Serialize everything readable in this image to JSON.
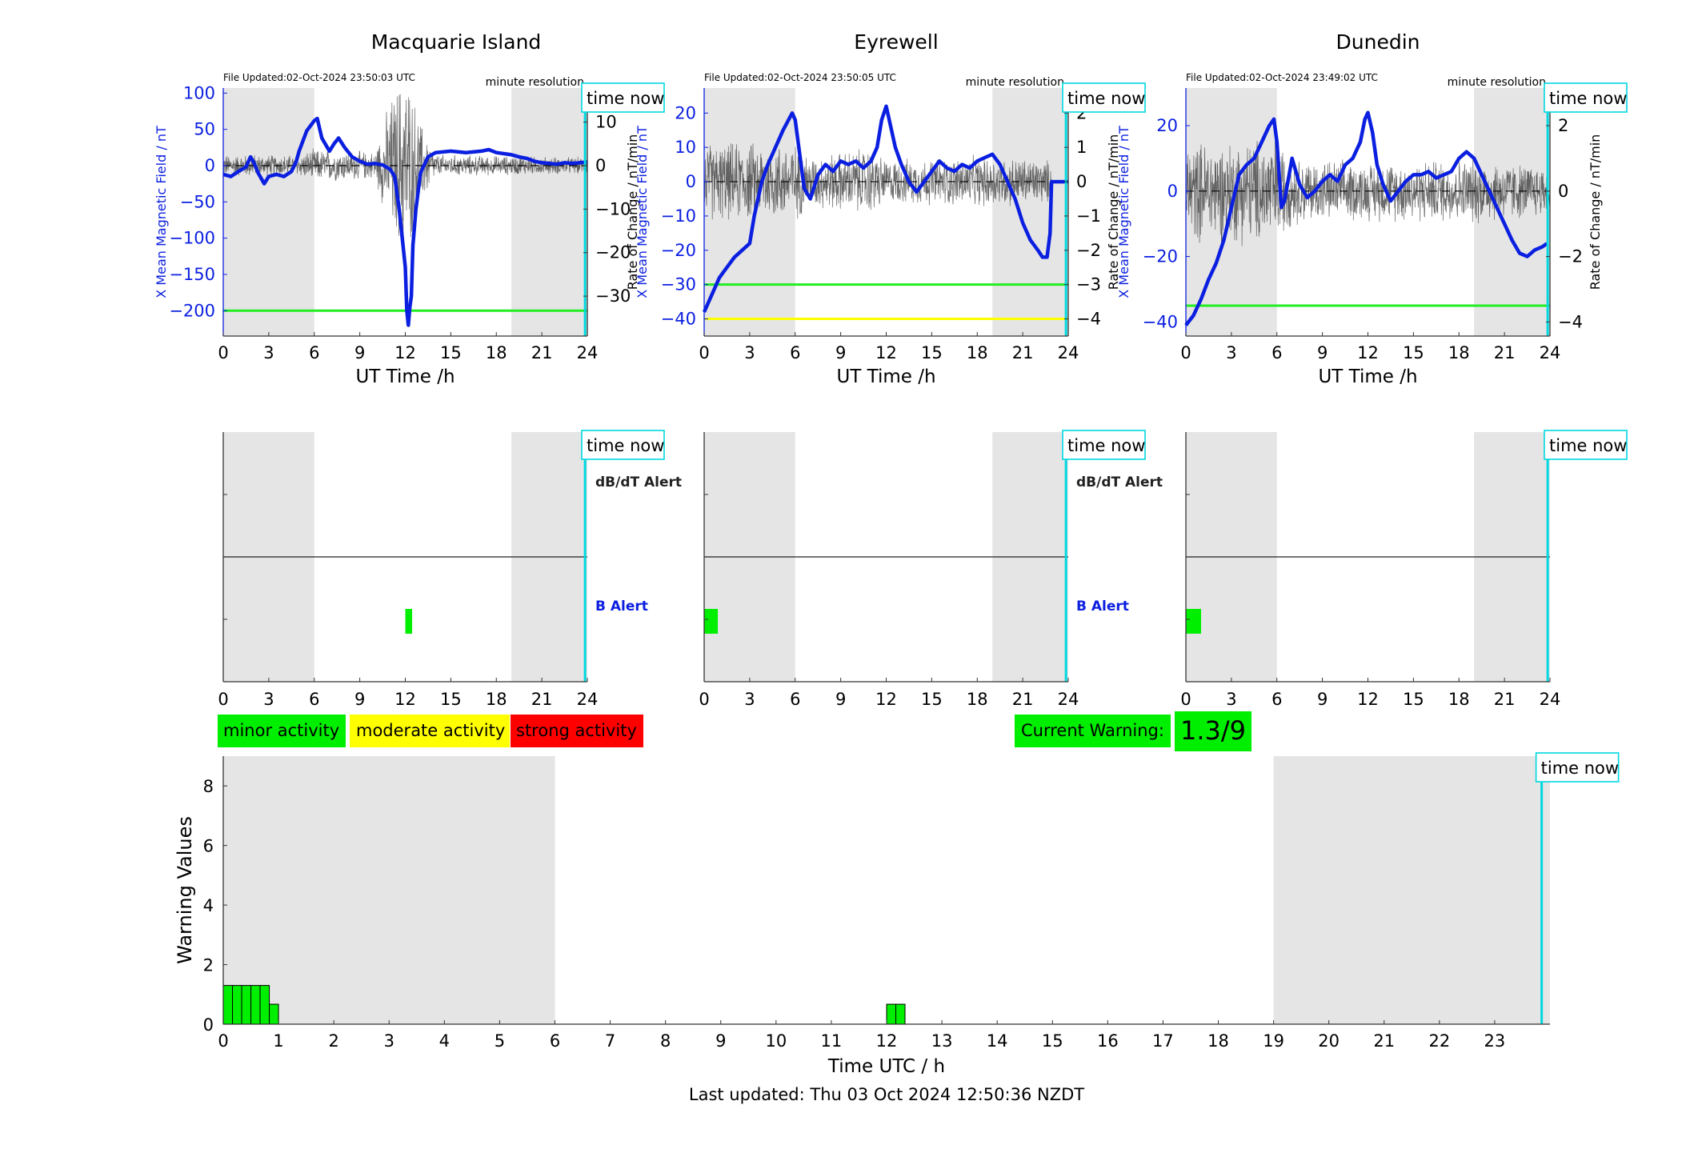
{
  "colors": {
    "b_field": "#0b1fe0",
    "rate": "#555555",
    "threshold_green": "#22ee22",
    "threshold_yellow": "#ffff00",
    "time_now": "#00d8e0",
    "night_shade": "#e5e5e5",
    "minor": "#00ee00",
    "moderate": "#ffff00",
    "strong": "#ff0000"
  },
  "common": {
    "x_axis_label": "UT Time /h",
    "resolution_label": "minute resolution",
    "time_now_label": "time now",
    "left_axis_label": "X Mean Magnetic Field / nT",
    "right_axis_label": "Rate of Change / nT/min",
    "dbdt_alert_label": "dB/dT Alert",
    "b_alert_label": "B Alert"
  },
  "legend": {
    "minor": "minor activity",
    "moderate": "moderate activity",
    "strong": "strong activity"
  },
  "current_warning": {
    "label": "Current Warning:",
    "value": "1.3/9"
  },
  "footer": {
    "last_updated": "Last updated: Thu 03 Oct 2024 12:50:36 NZDT"
  },
  "chart_data": [
    {
      "type": "line",
      "title": "Macquarie Island",
      "file_updated": "File Updated:02-Oct-2024 23:50:03 UTC",
      "xlabel": "UT Time /h",
      "ylabel": "X Mean Magnetic Field / nT",
      "y2label": "Rate of Change / nT/min",
      "xlim": [
        0,
        24
      ],
      "xticks": [
        0,
        3,
        6,
        9,
        12,
        15,
        18,
        21,
        24
      ],
      "ylim": [
        -235,
        107
      ],
      "yticks": [
        100,
        50,
        0,
        -50,
        -100,
        -150,
        -200
      ],
      "y2lim": [
        -39.17,
        17.83
      ],
      "y2ticks": [
        10,
        0,
        -10,
        -20,
        -30
      ],
      "night_shade": [
        [
          0,
          6
        ],
        [
          19,
          24
        ]
      ],
      "thresholds": [
        {
          "y": -200,
          "color": "#22ee22"
        }
      ],
      "time_now": 23.85,
      "b_series": [
        [
          0,
          -12
        ],
        [
          0.5,
          -15
        ],
        [
          1,
          -8
        ],
        [
          1.5,
          -2
        ],
        [
          1.8,
          12
        ],
        [
          2,
          5
        ],
        [
          2.3,
          -10
        ],
        [
          2.7,
          -25
        ],
        [
          3,
          -15
        ],
        [
          3.5,
          -12
        ],
        [
          4,
          -15
        ],
        [
          4.5,
          -8
        ],
        [
          4.8,
          5
        ],
        [
          5,
          20
        ],
        [
          5.5,
          48
        ],
        [
          6,
          62
        ],
        [
          6.2,
          65
        ],
        [
          6.5,
          38
        ],
        [
          7,
          20
        ],
        [
          7.3,
          30
        ],
        [
          7.6,
          38
        ],
        [
          8,
          25
        ],
        [
          8.5,
          12
        ],
        [
          9,
          6
        ],
        [
          9.5,
          2
        ],
        [
          10,
          3
        ],
        [
          10.5,
          1
        ],
        [
          11,
          -5
        ],
        [
          11.3,
          -15
        ],
        [
          11.6,
          -60
        ],
        [
          11.8,
          -100
        ],
        [
          12,
          -140
        ],
        [
          12.1,
          -200
        ],
        [
          12.2,
          -220
        ],
        [
          12.3,
          -195
        ],
        [
          12.4,
          -180
        ],
        [
          12.5,
          -110
        ],
        [
          12.7,
          -60
        ],
        [
          13,
          -10
        ],
        [
          13.5,
          12
        ],
        [
          14,
          18
        ],
        [
          15,
          20
        ],
        [
          16,
          18
        ],
        [
          17,
          20
        ],
        [
          17.5,
          22
        ],
        [
          18,
          18
        ],
        [
          19,
          15
        ],
        [
          19.5,
          12
        ],
        [
          20,
          10
        ],
        [
          20.5,
          6
        ],
        [
          21,
          4
        ],
        [
          21.5,
          3
        ],
        [
          22,
          2
        ],
        [
          22.5,
          4
        ],
        [
          23,
          3
        ],
        [
          23.5,
          4
        ],
        [
          24,
          5
        ]
      ],
      "rate_amplitude": [
        [
          0,
          2
        ],
        [
          5,
          2
        ],
        [
          6,
          3
        ],
        [
          10,
          2.5
        ],
        [
          11,
          12
        ],
        [
          12,
          18
        ],
        [
          13,
          8
        ],
        [
          14,
          2
        ],
        [
          24,
          1.5
        ]
      ]
    },
    {
      "type": "line",
      "title": "Eyrewell",
      "file_updated": "File Updated:02-Oct-2024 23:50:05 UTC",
      "xlabel": "UT Time /h",
      "ylabel": "X Mean Magnetic Field / nT",
      "y2label": "Rate of Change / nT/min",
      "xlim": [
        0,
        24
      ],
      "xticks": [
        0,
        3,
        6,
        9,
        12,
        15,
        18,
        21,
        24
      ],
      "ylim": [
        -45,
        27.3
      ],
      "yticks": [
        20,
        10,
        0,
        -10,
        -20,
        -30,
        -40
      ],
      "y2lim": [
        -4.5,
        2.73
      ],
      "y2ticks": [
        2,
        1,
        0,
        -1,
        -2,
        -3,
        -4
      ],
      "night_shade": [
        [
          0,
          6
        ],
        [
          19,
          24
        ]
      ],
      "thresholds": [
        {
          "y": -30,
          "color": "#22ee22"
        },
        {
          "y": -40,
          "color": "#ffff00"
        }
      ],
      "time_now": 23.85,
      "b_series": [
        [
          0,
          -38
        ],
        [
          0.5,
          -33
        ],
        [
          1,
          -28
        ],
        [
          1.5,
          -25
        ],
        [
          2,
          -22
        ],
        [
          2.5,
          -20
        ],
        [
          3,
          -18
        ],
        [
          3.3,
          -10
        ],
        [
          3.8,
          0
        ],
        [
          4.2,
          5
        ],
        [
          4.7,
          10
        ],
        [
          5.2,
          15
        ],
        [
          5.8,
          20
        ],
        [
          6,
          18
        ],
        [
          6.3,
          8
        ],
        [
          6.6,
          -2
        ],
        [
          7,
          -5
        ],
        [
          7.5,
          2
        ],
        [
          8,
          5
        ],
        [
          8.5,
          3
        ],
        [
          9,
          6
        ],
        [
          9.5,
          5
        ],
        [
          10,
          6
        ],
        [
          10.5,
          4
        ],
        [
          11,
          6
        ],
        [
          11.4,
          10
        ],
        [
          11.7,
          18
        ],
        [
          12,
          22
        ],
        [
          12.3,
          16
        ],
        [
          12.6,
          10
        ],
        [
          13,
          5
        ],
        [
          13.5,
          0
        ],
        [
          14,
          -3
        ],
        [
          14.5,
          0
        ],
        [
          15,
          3
        ],
        [
          15.5,
          6
        ],
        [
          16,
          4
        ],
        [
          16.5,
          3
        ],
        [
          17,
          5
        ],
        [
          17.5,
          4
        ],
        [
          18,
          6
        ],
        [
          18.5,
          7
        ],
        [
          19,
          8
        ],
        [
          19.5,
          5
        ],
        [
          20,
          0
        ],
        [
          20.5,
          -5
        ],
        [
          21,
          -12
        ],
        [
          21.5,
          -17
        ],
        [
          22,
          -20
        ],
        [
          22.3,
          -22
        ],
        [
          22.6,
          -22
        ],
        [
          22.8,
          -15
        ],
        [
          22.9,
          0
        ],
        [
          23.5,
          0
        ],
        [
          24,
          0
        ]
      ],
      "rate_amplitude": [
        [
          0,
          0.9
        ],
        [
          6,
          0.9
        ],
        [
          7,
          0.6
        ],
        [
          11,
          0.8
        ],
        [
          12,
          0.5
        ],
        [
          19,
          0.6
        ],
        [
          22.8,
          0.5
        ],
        [
          23,
          0
        ],
        [
          24,
          0
        ]
      ]
    },
    {
      "type": "line",
      "title": "Dunedin",
      "file_updated": "File Updated:02-Oct-2024 23:49:02 UTC",
      "xlabel": "UT Time /h",
      "ylabel": "X Mean Magnetic Field / nT",
      "y2label": "Rate of Change / nT/min",
      "xlim": [
        0,
        24
      ],
      "xticks": [
        0,
        3,
        6,
        9,
        12,
        15,
        18,
        21,
        24
      ],
      "ylim": [
        -44.3,
        31.5
      ],
      "yticks": [
        20,
        0,
        -20,
        -40
      ],
      "y2lim": [
        -4.43,
        3.15
      ],
      "y2ticks": [
        2,
        0,
        -2,
        -4
      ],
      "night_shade": [
        [
          0,
          6
        ],
        [
          19,
          24
        ]
      ],
      "thresholds": [
        {
          "y": -35,
          "color": "#22ee22"
        }
      ],
      "time_now": 23.85,
      "b_series": [
        [
          0,
          -41
        ],
        [
          0.5,
          -38
        ],
        [
          1,
          -33
        ],
        [
          1.5,
          -27
        ],
        [
          2,
          -22
        ],
        [
          2.5,
          -15
        ],
        [
          3,
          -5
        ],
        [
          3.5,
          5
        ],
        [
          4,
          8
        ],
        [
          4.5,
          10
        ],
        [
          5,
          15
        ],
        [
          5.5,
          20
        ],
        [
          5.8,
          22
        ],
        [
          6,
          15
        ],
        [
          6.3,
          -5
        ],
        [
          6.5,
          -3
        ],
        [
          7,
          10
        ],
        [
          7.5,
          2
        ],
        [
          8,
          -2
        ],
        [
          8.5,
          0
        ],
        [
          9,
          3
        ],
        [
          9.5,
          5
        ],
        [
          10,
          3
        ],
        [
          10.5,
          8
        ],
        [
          11,
          10
        ],
        [
          11.5,
          15
        ],
        [
          11.8,
          22
        ],
        [
          12,
          24
        ],
        [
          12.3,
          18
        ],
        [
          12.6,
          8
        ],
        [
          13,
          2
        ],
        [
          13.5,
          -3
        ],
        [
          14,
          0
        ],
        [
          14.5,
          3
        ],
        [
          15,
          5
        ],
        [
          15.5,
          5
        ],
        [
          16,
          6
        ],
        [
          16.5,
          4
        ],
        [
          17,
          5
        ],
        [
          17.5,
          6
        ],
        [
          18,
          10
        ],
        [
          18.5,
          12
        ],
        [
          19,
          10
        ],
        [
          19.5,
          5
        ],
        [
          20,
          0
        ],
        [
          20.5,
          -5
        ],
        [
          21,
          -10
        ],
        [
          21.5,
          -15
        ],
        [
          22,
          -19
        ],
        [
          22.5,
          -20
        ],
        [
          23,
          -18
        ],
        [
          23.5,
          -17
        ],
        [
          23.8,
          -16
        ]
      ],
      "rate_amplitude": [
        [
          0,
          1.2
        ],
        [
          6,
          1.3
        ],
        [
          7,
          0.8
        ],
        [
          12,
          0.7
        ],
        [
          19,
          0.8
        ],
        [
          24,
          0.6
        ]
      ]
    },
    {
      "type": "bar",
      "ylabel": "Warning Values",
      "xlabel": "Time UTC / h",
      "xlim": [
        0,
        24
      ],
      "xticks": [
        0,
        1,
        2,
        3,
        4,
        5,
        6,
        7,
        8,
        9,
        10,
        11,
        12,
        13,
        14,
        15,
        16,
        17,
        18,
        19,
        20,
        21,
        22,
        23
      ],
      "ylim": [
        0,
        9
      ],
      "yticks": [
        0,
        2,
        4,
        6,
        8
      ],
      "night_shade": [
        [
          0,
          6
        ],
        [
          19,
          24
        ]
      ],
      "time_now": 23.85,
      "bar_width_h": 0.1667,
      "bars": [
        {
          "x": 0.0,
          "value": 1.3
        },
        {
          "x": 0.1667,
          "value": 1.3
        },
        {
          "x": 0.3333,
          "value": 1.3
        },
        {
          "x": 0.5,
          "value": 1.3
        },
        {
          "x": 0.6667,
          "value": 1.3
        },
        {
          "x": 0.8333,
          "value": 0.67
        },
        {
          "x": 12.0,
          "value": 0.67
        },
        {
          "x": 12.1667,
          "value": 0.67
        }
      ]
    }
  ],
  "alerts": [
    {
      "b_alert": [
        [
          12.0,
          12.45
        ]
      ],
      "dbdt_alert": []
    },
    {
      "b_alert": [
        [
          0.0,
          0.9
        ]
      ],
      "dbdt_alert": []
    },
    {
      "b_alert": [
        [
          0.0,
          1.0
        ]
      ],
      "dbdt_alert": []
    }
  ]
}
